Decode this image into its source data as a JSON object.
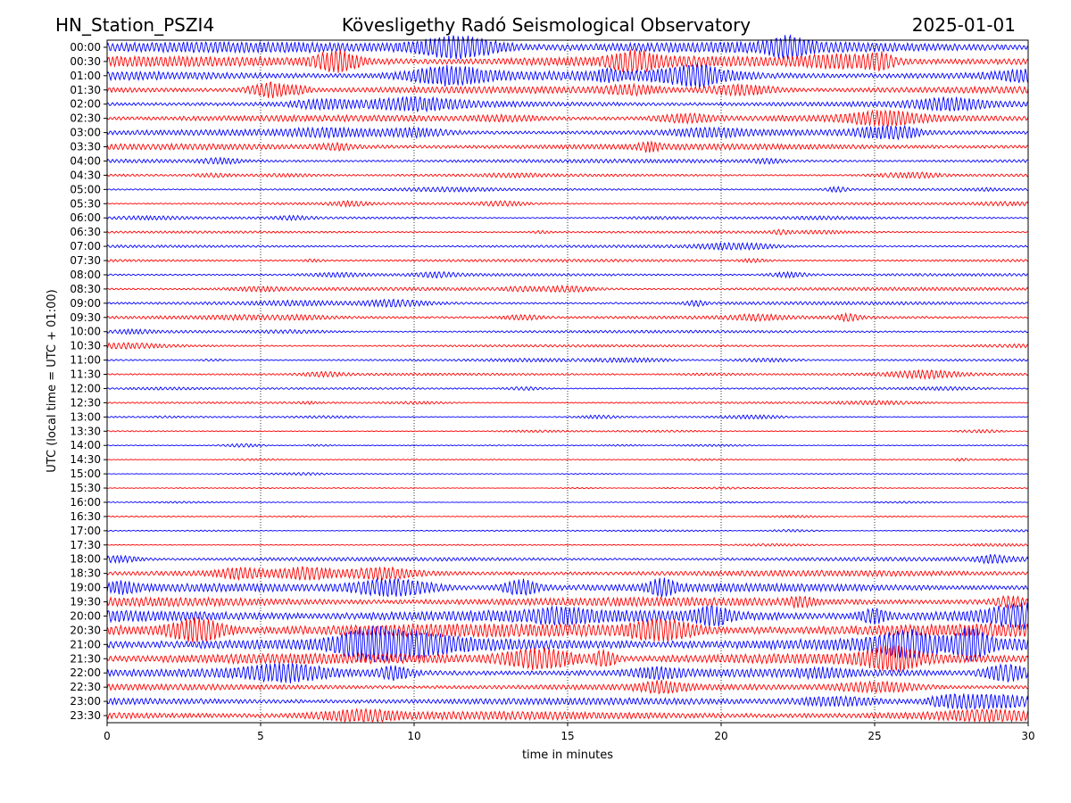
{
  "header": {
    "station": "HN_Station_PSZI4",
    "observatory": "Kövesligethy Radó Seismological Observatory",
    "date": "2025-01-01"
  },
  "chart_data": {
    "type": "line",
    "title": "Kövesligethy Radó Seismological Observatory",
    "xlabel": "time in minutes",
    "ylabel": "UTC (local time = UTC + 01:00)",
    "xlim": [
      0,
      30
    ],
    "xticks": [
      0,
      5,
      10,
      15,
      20,
      25,
      30
    ],
    "x_grid": "dotted vertical lines at 5, 10, 15, 20, 25",
    "series_colors": [
      "#0000ff",
      "#ff0000"
    ],
    "row_labels": [
      "00:00",
      "00:30",
      "01:00",
      "01:30",
      "02:00",
      "02:30",
      "03:00",
      "03:30",
      "04:00",
      "04:30",
      "05:00",
      "05:30",
      "06:00",
      "06:30",
      "07:00",
      "07:30",
      "08:00",
      "08:30",
      "09:00",
      "09:30",
      "10:00",
      "10:30",
      "11:00",
      "11:30",
      "12:00",
      "12:30",
      "13:00",
      "13:30",
      "14:00",
      "14:30",
      "15:00",
      "15:30",
      "16:00",
      "16:30",
      "17:00",
      "17:30",
      "18:00",
      "18:30",
      "19:00",
      "19:30",
      "20:00",
      "20:30",
      "21:00",
      "21:30",
      "22:00",
      "22:30",
      "23:00",
      "23:30"
    ],
    "amplitude": [
      0.75,
      0.7,
      0.6,
      0.45,
      0.4,
      0.42,
      0.4,
      0.4,
      0.25,
      0.18,
      0.16,
      0.16,
      0.15,
      0.15,
      0.18,
      0.18,
      0.18,
      0.22,
      0.22,
      0.22,
      0.18,
      0.16,
      0.14,
      0.16,
      0.12,
      0.12,
      0.1,
      0.08,
      0.07,
      0.07,
      0.06,
      0.06,
      0.06,
      0.07,
      0.08,
      0.08,
      0.25,
      0.4,
      0.55,
      0.6,
      0.85,
      0.9,
      0.9,
      0.7,
      0.55,
      0.4,
      0.45,
      0.55
    ]
  }
}
